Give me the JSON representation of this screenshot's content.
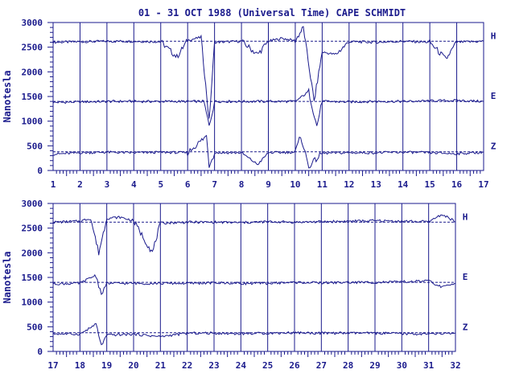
{
  "title": "01 - 31 OCT 1988 (Universal Time) CAPE SCHMIDT",
  "colors": {
    "trace": "#1a1a8c",
    "frame": "#1a1a8c",
    "dashed": "#1a1a8c",
    "background": "#ffffff"
  },
  "chart_data": [
    {
      "type": "line",
      "ylabel": "Nanotesla",
      "ylim": [
        0,
        3000
      ],
      "yticks": [
        0,
        500,
        1000,
        1500,
        2000,
        2500,
        3000
      ],
      "xlim": [
        1,
        17
      ],
      "xticks": [
        1,
        2,
        3,
        4,
        5,
        6,
        7,
        8,
        9,
        10,
        11,
        12,
        13,
        14,
        15,
        16,
        17
      ],
      "grid": "vertical lines at each day",
      "series": [
        {
          "name": "H",
          "baseline": 2620,
          "values": [
            [
              1,
              2600
            ],
            [
              2,
              2610
            ],
            [
              3,
              2620
            ],
            [
              4,
              2620
            ],
            [
              5,
              2610
            ],
            [
              5.6,
              2300
            ],
            [
              6,
              2640
            ],
            [
              6.5,
              2700
            ],
            [
              6.8,
              1000
            ],
            [
              7,
              2600
            ],
            [
              8,
              2620
            ],
            [
              8.6,
              2350
            ],
            [
              9,
              2620
            ],
            [
              9.5,
              2680
            ],
            [
              10,
              2630
            ],
            [
              10.3,
              2900
            ],
            [
              10.7,
              1400
            ],
            [
              11,
              2400
            ],
            [
              11.5,
              2350
            ],
            [
              12,
              2610
            ],
            [
              13,
              2600
            ],
            [
              14,
              2620
            ],
            [
              15,
              2600
            ],
            [
              15.6,
              2250
            ],
            [
              16,
              2600
            ],
            [
              17,
              2620
            ]
          ]
        },
        {
          "name": "E",
          "baseline": 1400,
          "values": [
            [
              1,
              1380
            ],
            [
              2,
              1390
            ],
            [
              3,
              1400
            ],
            [
              4,
              1400
            ],
            [
              5,
              1400
            ],
            [
              6,
              1400
            ],
            [
              6.6,
              1400
            ],
            [
              6.8,
              900
            ],
            [
              7,
              1400
            ],
            [
              8,
              1400
            ],
            [
              9,
              1400
            ],
            [
              10,
              1400
            ],
            [
              10.5,
              1600
            ],
            [
              10.8,
              900
            ],
            [
              11,
              1400
            ],
            [
              12,
              1390
            ],
            [
              13,
              1400
            ],
            [
              14,
              1400
            ],
            [
              15,
              1410
            ],
            [
              16,
              1420
            ],
            [
              17,
              1400
            ]
          ]
        },
        {
          "name": "Z",
          "baseline": 380,
          "values": [
            [
              1,
              330
            ],
            [
              2,
              360
            ],
            [
              3,
              370
            ],
            [
              4,
              360
            ],
            [
              5,
              370
            ],
            [
              6,
              360
            ],
            [
              6.7,
              700
            ],
            [
              6.8,
              100
            ],
            [
              7,
              360
            ],
            [
              8,
              360
            ],
            [
              8.6,
              120
            ],
            [
              9,
              360
            ],
            [
              10,
              370
            ],
            [
              10.2,
              700
            ],
            [
              10.5,
              80
            ],
            [
              11,
              350
            ],
            [
              12,
              360
            ],
            [
              13,
              360
            ],
            [
              14,
              370
            ],
            [
              15,
              360
            ],
            [
              16,
              340
            ],
            [
              17,
              370
            ]
          ]
        }
      ]
    },
    {
      "type": "line",
      "ylabel": "Nanotesla",
      "ylim": [
        0,
        3000
      ],
      "yticks": [
        0,
        500,
        1000,
        1500,
        2000,
        2500,
        3000
      ],
      "xlim": [
        17,
        32
      ],
      "xticks": [
        17,
        18,
        19,
        20,
        21,
        22,
        23,
        24,
        25,
        26,
        27,
        28,
        29,
        30,
        31,
        32
      ],
      "grid": "vertical lines at each day",
      "series": [
        {
          "name": "H",
          "baseline": 2620,
          "values": [
            [
              17,
              2620
            ],
            [
              18,
              2640
            ],
            [
              18.4,
              2700
            ],
            [
              18.7,
              2000
            ],
            [
              19,
              2700
            ],
            [
              19.5,
              2720
            ],
            [
              20,
              2650
            ],
            [
              20.7,
              2000
            ],
            [
              21,
              2600
            ],
            [
              22,
              2620
            ],
            [
              23,
              2620
            ],
            [
              24,
              2610
            ],
            [
              25,
              2630
            ],
            [
              26,
              2620
            ],
            [
              27,
              2630
            ],
            [
              28,
              2640
            ],
            [
              29,
              2650
            ],
            [
              30,
              2640
            ],
            [
              31,
              2630
            ],
            [
              31.5,
              2780
            ],
            [
              32,
              2630
            ]
          ]
        },
        {
          "name": "E",
          "baseline": 1400,
          "values": [
            [
              17,
              1370
            ],
            [
              18,
              1380
            ],
            [
              18.6,
              1550
            ],
            [
              18.8,
              1150
            ],
            [
              19,
              1380
            ],
            [
              20,
              1380
            ],
            [
              21,
              1380
            ],
            [
              22,
              1380
            ],
            [
              23,
              1390
            ],
            [
              24,
              1380
            ],
            [
              25,
              1380
            ],
            [
              26,
              1400
            ],
            [
              27,
              1390
            ],
            [
              28,
              1400
            ],
            [
              29,
              1400
            ],
            [
              30,
              1410
            ],
            [
              31,
              1430
            ],
            [
              31.5,
              1300
            ],
            [
              32,
              1380
            ]
          ]
        },
        {
          "name": "Z",
          "baseline": 380,
          "values": [
            [
              17,
              360
            ],
            [
              18,
              350
            ],
            [
              18.6,
              550
            ],
            [
              18.8,
              120
            ],
            [
              19,
              330
            ],
            [
              20,
              350
            ],
            [
              21,
              300
            ],
            [
              22,
              370
            ],
            [
              23,
              370
            ],
            [
              24,
              360
            ],
            [
              25,
              370
            ],
            [
              26,
              380
            ],
            [
              27,
              370
            ],
            [
              28,
              370
            ],
            [
              29,
              370
            ],
            [
              30,
              360
            ],
            [
              31,
              350
            ],
            [
              32,
              370
            ]
          ]
        }
      ]
    }
  ]
}
